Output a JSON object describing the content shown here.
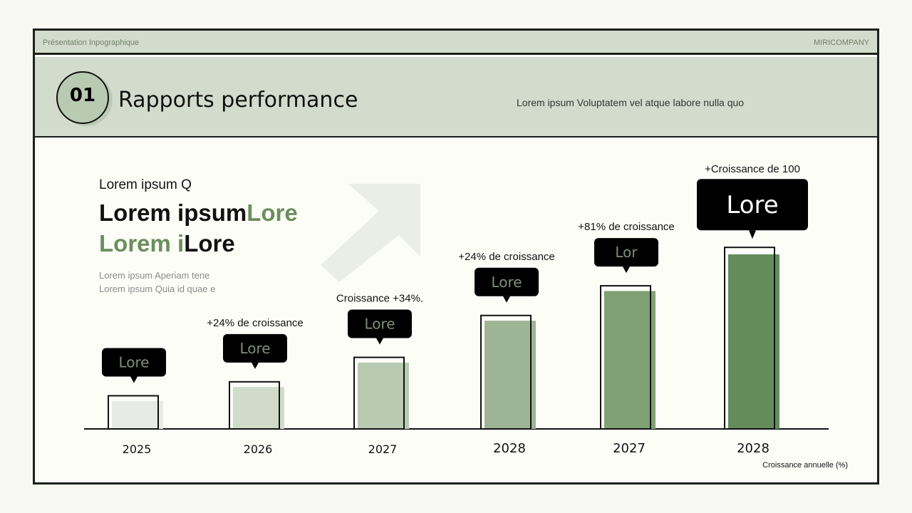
{
  "header": {
    "left": "Présentation Inpographique",
    "right": "MIRICOMPANY"
  },
  "section": {
    "number": "01",
    "title": "Rapports performance",
    "subtitle": "Lorem ipsum Voluptatem vel atque labore nulla quo"
  },
  "intro": {
    "lead": "Lorem ipsum Q",
    "big1_black": "Lorem ipsum",
    "big1_green": "Lore",
    "big2_green": "Lorem i",
    "big2_black": "Lore",
    "small1": "Lorem ipsum Aperiam tene",
    "small2": "Lorem ipsum Quia id quae e"
  },
  "decor": {
    "icon": "arrow-up-right-icon"
  },
  "colors": {
    "accent": "#6b8f5e",
    "dark": "#000000",
    "frame": "#1b201b",
    "band": "#d3dccc"
  },
  "chart_data": {
    "type": "bar",
    "categories": [
      "2025",
      "2026",
      "2027",
      "2028",
      "2027",
      "2028"
    ],
    "values": [
      16,
      24,
      38,
      62,
      79,
      100
    ],
    "outline_values": [
      19,
      27,
      41,
      65,
      82,
      104
    ],
    "bar_colors": [
      "#e8ebe5",
      "#d0dcc9",
      "#b9cab2",
      "#9db495",
      "#7fa173",
      "#638c5a"
    ],
    "bubble_labels": [
      "Lore",
      "Lore",
      "Lore",
      "Lore",
      "Lor",
      "Lore"
    ],
    "annotations": [
      "",
      "+24% de croissance",
      "Croissance +34%.",
      "+24% de croissance",
      "+81% de croissance",
      "+Croissance de 100"
    ],
    "xlabel": "Croissance annuelle (%)",
    "ylabel": "",
    "grid": false
  }
}
